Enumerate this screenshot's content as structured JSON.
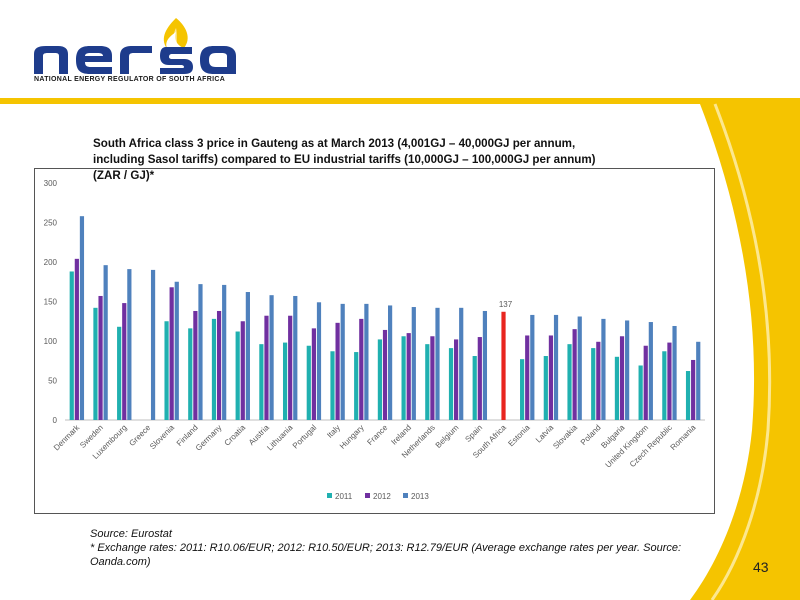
{
  "logo": {
    "word": "nersa",
    "subtitle": "NATIONAL ENERGY REGULATOR OF SOUTH AFRICA"
  },
  "colors": {
    "band": "#f5c400",
    "blue": "#1e3c8c",
    "s2011": "#20b0b0",
    "s2012": "#7030a0",
    "s2013": "#4f81bd",
    "highlight": "#e8251f"
  },
  "title": "South Africa class 3 price in Gauteng as at March 2013 (4,001GJ – 40,000GJ per annum, including Sasol tariffs) compared to EU industrial tariffs (10,000GJ – 100,000GJ per annum) (ZAR / GJ)*",
  "source": {
    "line1": "Source: Eurostat",
    "line2": "* Exchange rates: 2011: R10.06/EUR; 2012: R10.50/EUR; 2013: R12.79/EUR (Average exchange rates per year. Source: Oanda.com)"
  },
  "page_number": "43",
  "chart_data": {
    "type": "bar",
    "ylim": [
      0,
      300
    ],
    "yticks": [
      "0",
      "50",
      "100",
      "150",
      "200",
      "250",
      "300"
    ],
    "categories": [
      "Denmark",
      "Sweden",
      "Luxembourg",
      "Greece",
      "Slovenia",
      "Finland",
      "Germany",
      "Croatia",
      "Austria",
      "Lithuania",
      "Portugal",
      "Italy",
      "Hungary",
      "France",
      "Ireland",
      "Netherlands",
      "Belgium",
      "Spain",
      "South Africa",
      "Estonia",
      "Latvia",
      "Slovakia",
      "Poland",
      "Bulgaria",
      "United Kingdom",
      "Czech Republic",
      "Romania"
    ],
    "series": [
      {
        "name": "2011",
        "color": "#20b0b0",
        "values": [
          188,
          142,
          118,
          null,
          125,
          116,
          128,
          112,
          96,
          98,
          94,
          87,
          86,
          102,
          106,
          96,
          91,
          81,
          null,
          77,
          81,
          96,
          91,
          80,
          69,
          87,
          62
        ]
      },
      {
        "name": "2012",
        "color": "#7030a0",
        "values": [
          204,
          157,
          148,
          null,
          168,
          138,
          138,
          125,
          132,
          132,
          116,
          123,
          128,
          114,
          110,
          106,
          102,
          105,
          null,
          107,
          107,
          115,
          99,
          106,
          94,
          98,
          76
        ]
      },
      {
        "name": "2013",
        "color": "#4f81bd",
        "values": [
          258,
          196,
          191,
          190,
          175,
          172,
          171,
          162,
          158,
          157,
          149,
          147,
          147,
          145,
          143,
          142,
          142,
          138,
          null,
          133,
          133,
          131,
          128,
          126,
          124,
          119,
          99
        ]
      }
    ],
    "highlight": {
      "category": "South Africa",
      "value": 137,
      "label": "137",
      "color": "#e8251f"
    },
    "legend": [
      "2011",
      "2012",
      "2013"
    ],
    "legend_position": "bottom"
  }
}
